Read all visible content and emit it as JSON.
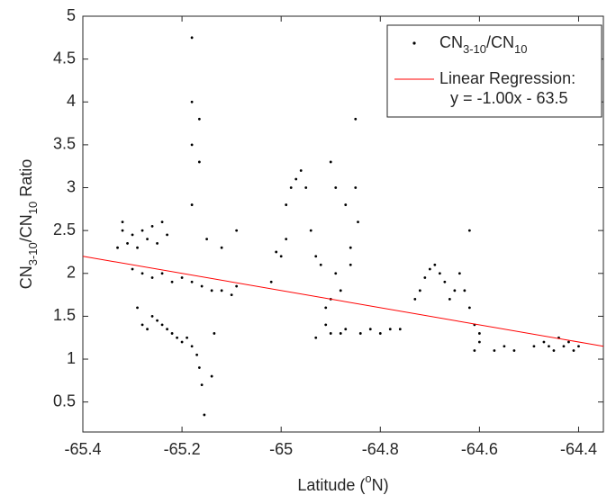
{
  "chart_data": {
    "type": "scatter",
    "x_label": [
      {
        "text": "Latitude ("
      },
      {
        "text": "o",
        "sup": true
      },
      {
        "text": "N)"
      }
    ],
    "y_label": [
      {
        "text": "CN"
      },
      {
        "text": "3-10",
        "sub": true
      },
      {
        "text": "/CN"
      },
      {
        "text": "10",
        "sub": true
      },
      {
        "text": " Ratio"
      }
    ],
    "xlim": [
      -65.4,
      -64.35
    ],
    "ylim": [
      0.15,
      5
    ],
    "xticks": [
      -65.4,
      -65.2,
      -65,
      -64.8,
      -64.6,
      -64.4
    ],
    "yticks": [
      0.5,
      1,
      1.5,
      2,
      2.5,
      3,
      3.5,
      4,
      4.5,
      5
    ],
    "legend": "upper right",
    "series": [
      {
        "name": [
          {
            "text": "CN"
          },
          {
            "text": "3-10",
            "sub": true
          },
          {
            "text": "/CN"
          },
          {
            "text": "10",
            "sub": true
          }
        ],
        "type": "scatter",
        "color": "#000000",
        "x": [
          -65.33,
          -65.32,
          -65.32,
          -65.31,
          -65.3,
          -65.29,
          -65.28,
          -65.27,
          -65.26,
          -65.25,
          -65.24,
          -65.23,
          -65.3,
          -65.28,
          -65.26,
          -65.24,
          -65.22,
          -65.2,
          -65.18,
          -65.16,
          -65.14,
          -65.12,
          -65.1,
          -65.09,
          -65.29,
          -65.28,
          -65.27,
          -65.26,
          -65.25,
          -65.24,
          -65.23,
          -65.22,
          -65.21,
          -65.2,
          -65.19,
          -65.18,
          -65.17,
          -65.165,
          -65.16,
          -65.155,
          -65.14,
          -65.135,
          -65.18,
          -65.18,
          -65.18,
          -65.18,
          -65.165,
          -65.165,
          -65.15,
          -65.12,
          -65.09,
          -65.02,
          -65.01,
          -65.0,
          -64.99,
          -64.99,
          -64.98,
          -64.97,
          -64.96,
          -64.95,
          -64.94,
          -64.93,
          -64.92,
          -64.91,
          -64.91,
          -64.9,
          -64.9,
          -64.89,
          -64.89,
          -64.88,
          -64.88,
          -64.87,
          -64.87,
          -64.86,
          -64.86,
          -64.85,
          -64.85,
          -64.845,
          -64.84,
          -64.82,
          -64.8,
          -64.78,
          -64.76,
          -64.93,
          -64.9,
          -64.73,
          -64.72,
          -64.71,
          -64.7,
          -64.69,
          -64.68,
          -64.67,
          -64.66,
          -64.65,
          -64.64,
          -64.63,
          -64.62,
          -64.62,
          -64.61,
          -64.61,
          -64.6,
          -64.6,
          -64.57,
          -64.55,
          -64.53,
          -64.49,
          -64.47,
          -64.45,
          -64.44,
          -64.43,
          -64.42,
          -64.41,
          -64.4,
          -64.46
        ],
        "y": [
          2.3,
          2.5,
          2.6,
          2.35,
          2.45,
          2.3,
          2.5,
          2.4,
          2.55,
          2.35,
          2.6,
          2.45,
          2.05,
          2.0,
          1.95,
          2.0,
          1.9,
          1.95,
          1.9,
          1.85,
          1.8,
          1.8,
          1.75,
          1.85,
          1.6,
          1.4,
          1.35,
          1.5,
          1.45,
          1.4,
          1.35,
          1.3,
          1.25,
          1.2,
          1.25,
          1.15,
          1.05,
          0.9,
          0.7,
          0.35,
          0.8,
          1.3,
          2.8,
          3.5,
          4.0,
          4.75,
          3.8,
          3.3,
          2.4,
          2.3,
          2.5,
          1.9,
          2.25,
          2.2,
          2.4,
          2.8,
          3.0,
          3.1,
          3.2,
          3.0,
          2.5,
          2.2,
          2.1,
          1.6,
          1.4,
          1.3,
          3.3,
          3.0,
          2.0,
          1.8,
          1.3,
          1.35,
          2.8,
          2.3,
          2.1,
          3.0,
          3.8,
          2.6,
          1.3,
          1.35,
          1.3,
          1.35,
          1.35,
          1.25,
          1.7,
          1.7,
          1.8,
          1.95,
          2.05,
          2.1,
          2.0,
          1.9,
          1.7,
          1.8,
          2.0,
          1.8,
          2.5,
          1.6,
          1.4,
          1.1,
          1.2,
          1.3,
          1.1,
          1.15,
          1.1,
          1.15,
          1.2,
          1.1,
          1.25,
          1.15,
          1.2,
          1.1,
          1.15,
          1.15
        ]
      },
      {
        "name": "Linear Regression:",
        "type": "line",
        "color": "#ff0000",
        "x": [
          -65.4,
          -64.35
        ],
        "y": [
          2.2,
          1.15
        ]
      }
    ],
    "annotations": [
      "y = -1.00x - 63.5"
    ]
  }
}
